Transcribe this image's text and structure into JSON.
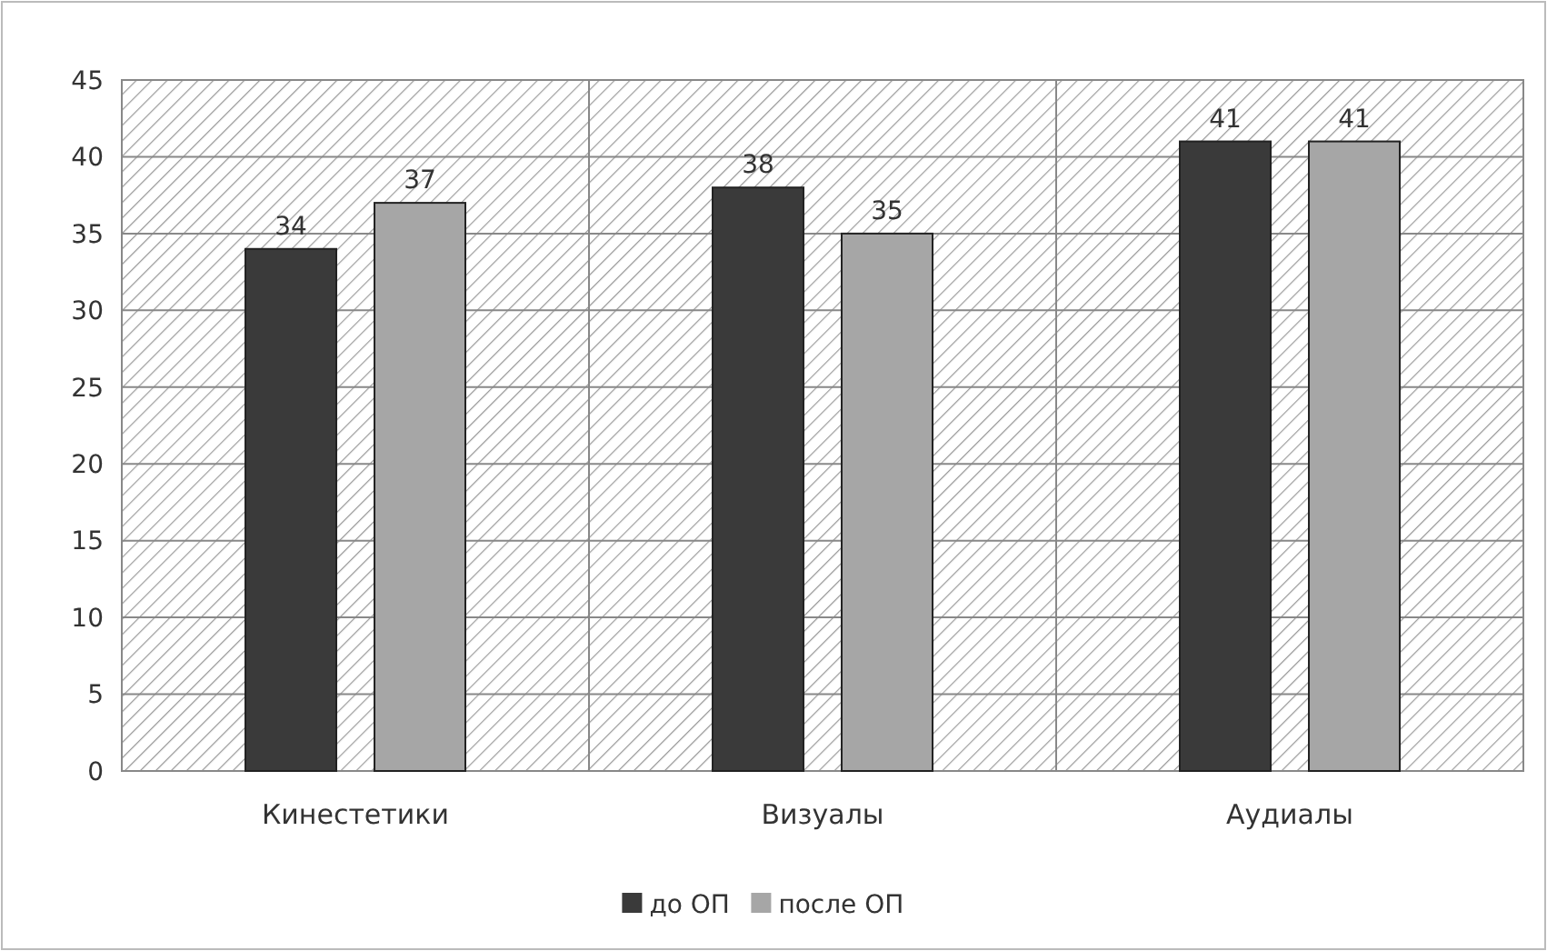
{
  "chart_data": {
    "type": "bar",
    "categories": [
      "Кинестетики",
      "Визуалы",
      "Аудиалы"
    ],
    "series": [
      {
        "name": "до ОП",
        "color": "#3a3a3a",
        "values": [
          34,
          38,
          41
        ]
      },
      {
        "name": "после ОП",
        "color": "#a6a6a6",
        "values": [
          37,
          35,
          41
        ]
      }
    ],
    "ylim": [
      0,
      45
    ],
    "yticks": [
      0,
      5,
      10,
      15,
      20,
      25,
      30,
      35,
      40,
      45
    ],
    "grid": true,
    "legend": "bottom",
    "data_labels": true
  }
}
